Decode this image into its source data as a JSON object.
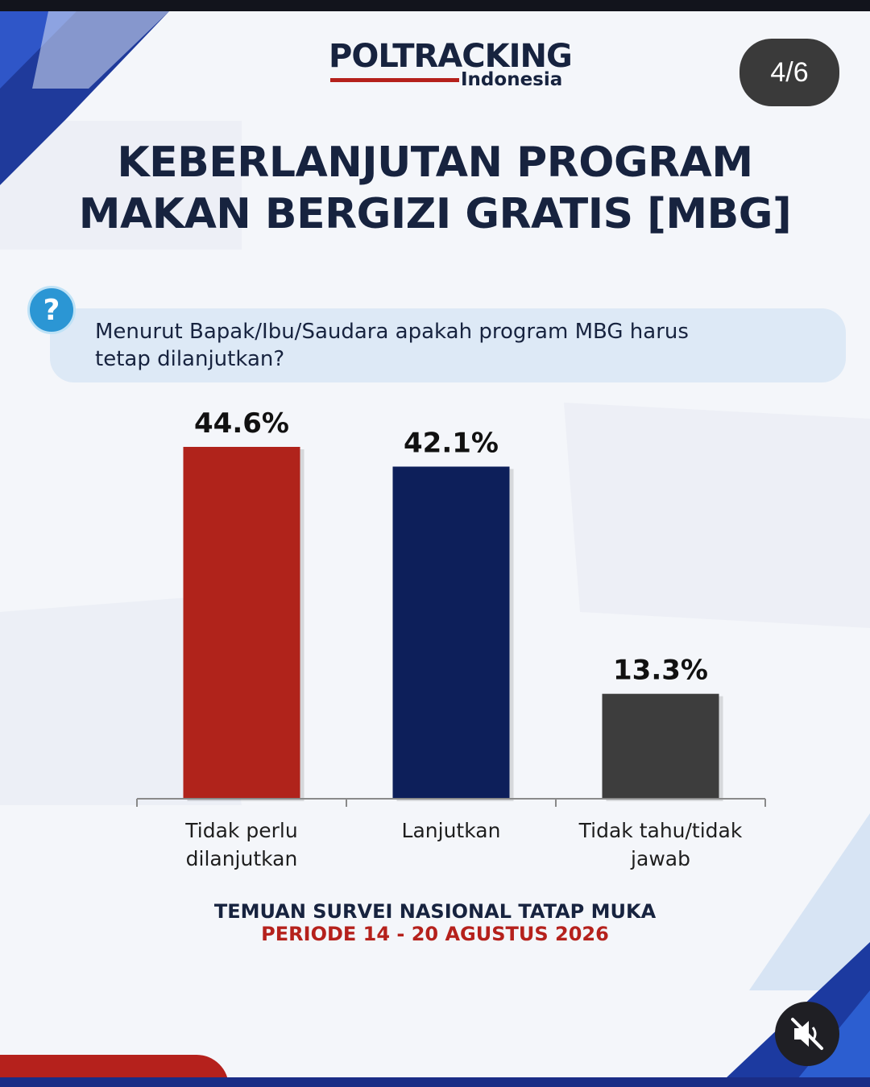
{
  "brand": {
    "logo_main": "POLTRACKING",
    "logo_sub": "Indonesia",
    "accent_red": "#b5211c",
    "accent_navy": "#17233f"
  },
  "page_indicator": "4/6",
  "title": {
    "line1": "KEBERLANJUTAN PROGRAM",
    "line2": "MAKAN BERGIZI GRATIS [MBG]"
  },
  "question": {
    "icon": "question-mark-icon",
    "line1": "Menurut Bapak/Ibu/Saudara apakah program MBG harus",
    "line2": "tetap dilanjutkan?"
  },
  "chart_data": {
    "type": "bar",
    "categories": [
      "Tidak perlu dilanjutkan",
      "Lanjutkan",
      "Tidak tahu/tidak jawab"
    ],
    "category_lines": [
      [
        "Tidak perlu",
        "dilanjutkan"
      ],
      [
        "Lanjutkan"
      ],
      [
        "Tidak tahu/tidak",
        "jawab"
      ]
    ],
    "values": [
      44.6,
      42.1,
      13.3
    ],
    "value_labels": [
      "44.6%",
      "42.1%",
      "13.3%"
    ],
    "colors": [
      "#b0231b",
      "#0d1f5a",
      "#3d3d3d"
    ],
    "title": "",
    "xlabel": "",
    "ylabel": "",
    "ylim": [
      0,
      44.6
    ],
    "grid": false,
    "legend": "none"
  },
  "footer": {
    "line1": "TEMUAN SURVEI NASIONAL TATAP MUKA",
    "line2": "PERIODE 14 - 20 AGUSTUS 2026"
  },
  "controls": {
    "mute_icon": "speaker-muted-icon"
  }
}
